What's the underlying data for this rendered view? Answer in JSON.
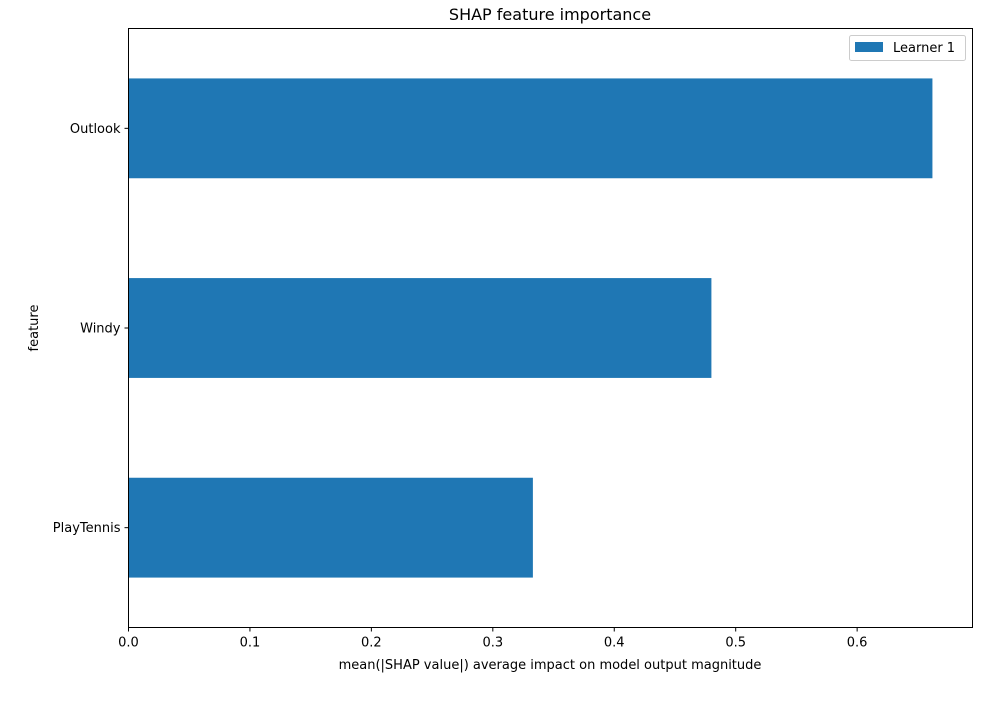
{
  "chart_data": {
    "type": "bar",
    "orientation": "horizontal",
    "title": "SHAP feature importance",
    "xlabel": "mean(|SHAP value|) average impact on model output magnitude",
    "ylabel": "feature",
    "categories": [
      "Outlook",
      "Windy",
      "PlayTennis"
    ],
    "series": [
      {
        "name": "Learner 1",
        "values": [
          0.662,
          0.48,
          0.333
        ],
        "color": "#1f77b4"
      }
    ],
    "xlim": [
      0,
      0.695
    ],
    "xticks": [
      0.0,
      0.1,
      0.2,
      0.3,
      0.4,
      0.5,
      0.6
    ],
    "xtick_labels": [
      "0.0",
      "0.1",
      "0.2",
      "0.3",
      "0.4",
      "0.5",
      "0.6"
    ],
    "grid": false,
    "legend_position": "top-right"
  }
}
